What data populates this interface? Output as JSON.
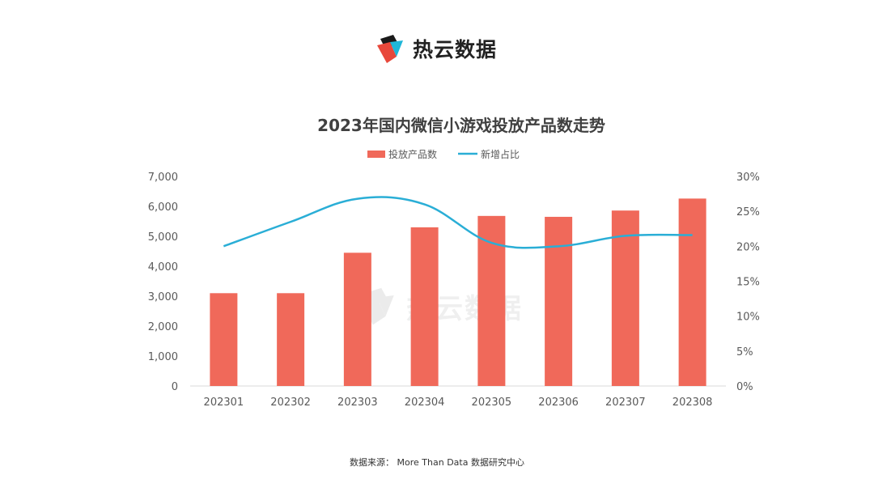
{
  "brand": {
    "name": "热云数据"
  },
  "watermark": {
    "name": "热云数据"
  },
  "source": {
    "text": "数据来源：  More Than Data 数据研究中心"
  },
  "colors": {
    "bar": "#F0695A",
    "line": "#2AAED6",
    "axis_text": "#595959",
    "title": "#404040"
  },
  "chart_data": {
    "type": "bar",
    "title": "2023年国内微信小游戏投放产品数走势",
    "categories": [
      "202301",
      "202302",
      "202303",
      "202304",
      "202305",
      "202306",
      "202307",
      "202308"
    ],
    "series": [
      {
        "name": "投放产品数",
        "kind": "bar",
        "axis": "left",
        "values": [
          3100,
          3100,
          4450,
          5300,
          5680,
          5650,
          5860,
          6260
        ]
      },
      {
        "name": "新增占比",
        "kind": "line",
        "axis": "right",
        "unit": "%",
        "values": [
          20.0,
          23.5,
          26.8,
          26.0,
          20.5,
          20.0,
          21.5,
          21.6
        ]
      }
    ],
    "left_axis": {
      "ylim": [
        0,
        7000
      ],
      "ticks": [
        "7,000",
        "6,000",
        "5,000",
        "4,000",
        "3,000",
        "2,000",
        "1,000",
        "0"
      ]
    },
    "right_axis": {
      "ylim": [
        0,
        30
      ],
      "ticks": [
        "30%",
        "25%",
        "20%",
        "15%",
        "10%",
        "5%",
        "0%"
      ]
    },
    "legend_position": "top-center",
    "grid": false
  }
}
